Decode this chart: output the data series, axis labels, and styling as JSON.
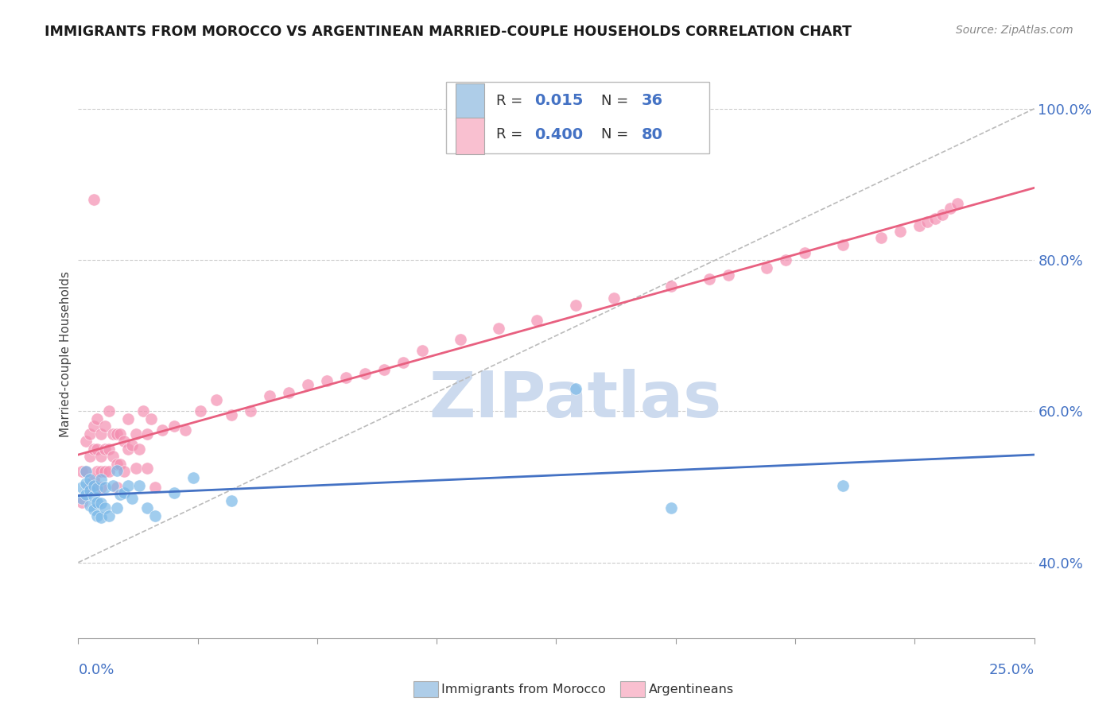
{
  "title": "IMMIGRANTS FROM MOROCCO VS ARGENTINEAN MARRIED-COUPLE HOUSEHOLDS CORRELATION CHART",
  "source": "Source: ZipAtlas.com",
  "ylabel": "Married-couple Households",
  "blue_color": "#7ab8e8",
  "pink_color": "#f48fb1",
  "blue_fill": "#aecde8",
  "pink_fill": "#f9c0d0",
  "xlim": [
    0.0,
    0.25
  ],
  "ylim": [
    0.3,
    1.05
  ],
  "yticks": [
    0.4,
    0.6,
    0.8,
    1.0
  ],
  "ytick_labels": [
    "40.0%",
    "60.0%",
    "80.0%",
    "100.0%"
  ],
  "xtick_labels": [
    "0.0%",
    "25.0%"
  ],
  "blue_R": "0.015",
  "blue_N": "36",
  "pink_R": "0.400",
  "pink_N": "80",
  "blue_scatter_x": [
    0.001,
    0.001,
    0.002,
    0.002,
    0.002,
    0.003,
    0.003,
    0.003,
    0.004,
    0.004,
    0.004,
    0.005,
    0.005,
    0.005,
    0.006,
    0.006,
    0.006,
    0.007,
    0.007,
    0.008,
    0.009,
    0.01,
    0.01,
    0.011,
    0.012,
    0.013,
    0.014,
    0.016,
    0.018,
    0.02,
    0.025,
    0.03,
    0.04,
    0.13,
    0.155,
    0.2
  ],
  "blue_scatter_y": [
    0.485,
    0.5,
    0.49,
    0.505,
    0.52,
    0.475,
    0.495,
    0.51,
    0.47,
    0.488,
    0.502,
    0.462,
    0.48,
    0.498,
    0.46,
    0.478,
    0.51,
    0.472,
    0.5,
    0.462,
    0.502,
    0.472,
    0.522,
    0.49,
    0.492,
    0.502,
    0.485,
    0.502,
    0.472,
    0.462,
    0.492,
    0.512,
    0.482,
    0.63,
    0.472,
    0.502
  ],
  "pink_scatter_x": [
    0.001,
    0.001,
    0.002,
    0.002,
    0.003,
    0.003,
    0.003,
    0.004,
    0.004,
    0.004,
    0.004,
    0.005,
    0.005,
    0.005,
    0.006,
    0.006,
    0.006,
    0.006,
    0.007,
    0.007,
    0.007,
    0.008,
    0.008,
    0.008,
    0.009,
    0.009,
    0.01,
    0.01,
    0.01,
    0.011,
    0.011,
    0.012,
    0.012,
    0.013,
    0.013,
    0.014,
    0.015,
    0.015,
    0.016,
    0.017,
    0.018,
    0.018,
    0.019,
    0.02,
    0.022,
    0.025,
    0.028,
    0.032,
    0.036,
    0.04,
    0.045,
    0.05,
    0.055,
    0.06,
    0.065,
    0.07,
    0.075,
    0.08,
    0.085,
    0.09,
    0.1,
    0.11,
    0.12,
    0.13,
    0.14,
    0.155,
    0.165,
    0.17,
    0.18,
    0.185,
    0.19,
    0.2,
    0.21,
    0.215,
    0.22,
    0.222,
    0.224,
    0.226,
    0.228,
    0.23
  ],
  "pink_scatter_y": [
    0.48,
    0.52,
    0.52,
    0.56,
    0.5,
    0.54,
    0.57,
    0.51,
    0.55,
    0.58,
    0.88,
    0.52,
    0.55,
    0.59,
    0.5,
    0.52,
    0.54,
    0.57,
    0.52,
    0.55,
    0.58,
    0.52,
    0.55,
    0.6,
    0.54,
    0.57,
    0.5,
    0.53,
    0.57,
    0.53,
    0.57,
    0.52,
    0.56,
    0.55,
    0.59,
    0.555,
    0.525,
    0.57,
    0.55,
    0.6,
    0.525,
    0.57,
    0.59,
    0.5,
    0.575,
    0.58,
    0.575,
    0.6,
    0.615,
    0.595,
    0.6,
    0.62,
    0.625,
    0.635,
    0.64,
    0.645,
    0.65,
    0.655,
    0.665,
    0.68,
    0.695,
    0.71,
    0.72,
    0.74,
    0.75,
    0.765,
    0.775,
    0.78,
    0.79,
    0.8,
    0.81,
    0.82,
    0.83,
    0.838,
    0.845,
    0.85,
    0.855,
    0.86,
    0.868,
    0.875
  ],
  "watermark_text": "ZIPatlas",
  "watermark_color": "#ccdaee",
  "ref_line_color": "#bbbbbb",
  "trend_blue_color": "#4472c4",
  "trend_pink_color": "#e86080"
}
